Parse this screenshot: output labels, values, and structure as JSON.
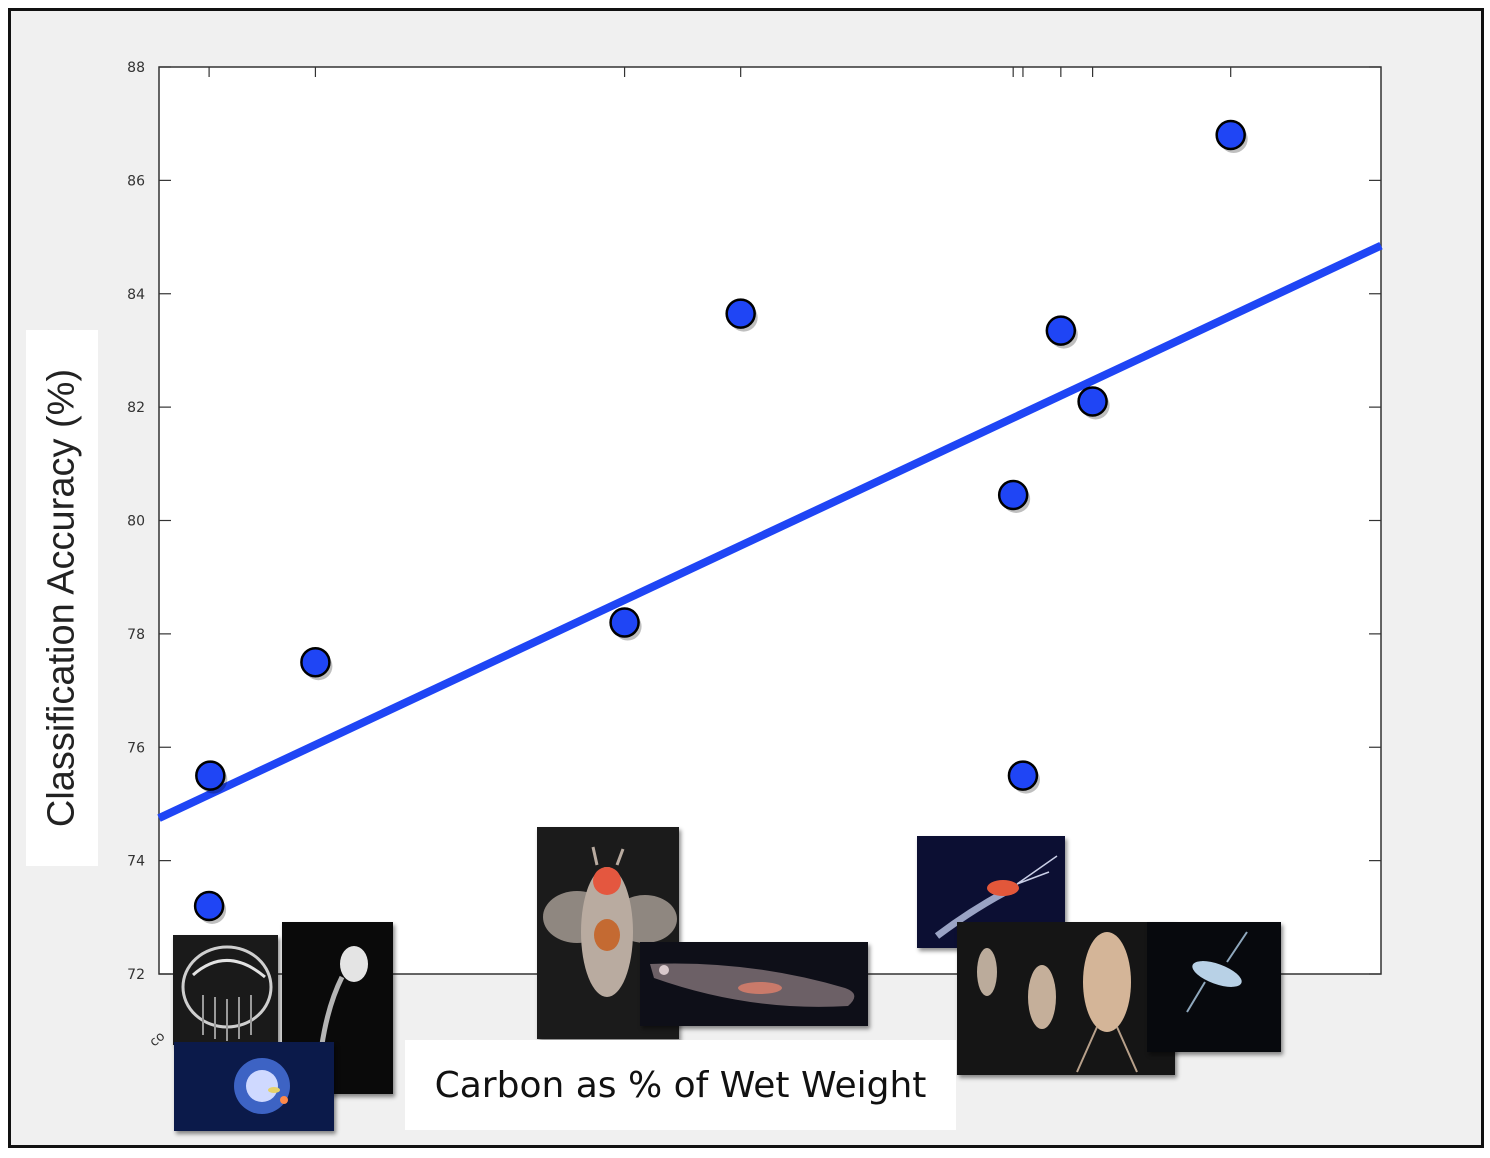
{
  "chart_data": {
    "type": "scatter",
    "title": "",
    "xlabel": "Carbon as % of Wet Weight",
    "ylabel": "Classification Accuracy (%)",
    "ylim": [
      72,
      88
    ],
    "yticks": [
      72,
      74,
      76,
      78,
      80,
      82,
      84,
      86,
      88
    ],
    "xlim": [
      0,
      1
    ],
    "x_tick_labels_visible": false,
    "grid": false,
    "points": [
      {
        "x": 0.041,
        "y": 73.2
      },
      {
        "x": 0.042,
        "y": 75.5
      },
      {
        "x": 0.128,
        "y": 77.5
      },
      {
        "x": 0.381,
        "y": 78.2
      },
      {
        "x": 0.476,
        "y": 83.65
      },
      {
        "x": 0.699,
        "y": 80.45
      },
      {
        "x": 0.707,
        "y": 75.5
      },
      {
        "x": 0.738,
        "y": 83.35
      },
      {
        "x": 0.764,
        "y": 82.1
      },
      {
        "x": 0.877,
        "y": 86.8
      }
    ],
    "trendline": {
      "x": [
        0.0,
        1.0
      ],
      "y": [
        74.75,
        84.85
      ]
    },
    "colors": {
      "marker": "#1f45f5",
      "marker_edge": "#000000",
      "trendline": "#1f45f5",
      "axes": "#333333"
    }
  },
  "photos": [
    {
      "name": "comb-jelly-photo",
      "colors": [
        "#1a1a1a",
        "#8d8d8d",
        "#d8d8d8"
      ]
    },
    {
      "name": "larvacean-photo",
      "colors": [
        "#0a0a0a",
        "#3a3a3a",
        "#e4e4e4"
      ]
    },
    {
      "name": "medusa-photo",
      "colors": [
        "#0b1a4a",
        "#2a4fae",
        "#cfd9ff"
      ]
    },
    {
      "name": "pteropod-photo",
      "colors": [
        "#1b1b1b",
        "#7d6f63",
        "#e4573f"
      ]
    },
    {
      "name": "salp-photo",
      "colors": [
        "#0e0f18",
        "#4a4b58",
        "#d7c5c8"
      ]
    },
    {
      "name": "krill-photo",
      "colors": [
        "#0c0f33",
        "#3a3f7a",
        "#e2573a"
      ]
    },
    {
      "name": "copepods-photo",
      "colors": [
        "#151515",
        "#6b5b4d",
        "#e9c7a6"
      ]
    },
    {
      "name": "amphipod-photo",
      "colors": [
        "#07090d",
        "#27313b",
        "#b8d1e6"
      ]
    }
  ],
  "stray_tick_text": "co"
}
